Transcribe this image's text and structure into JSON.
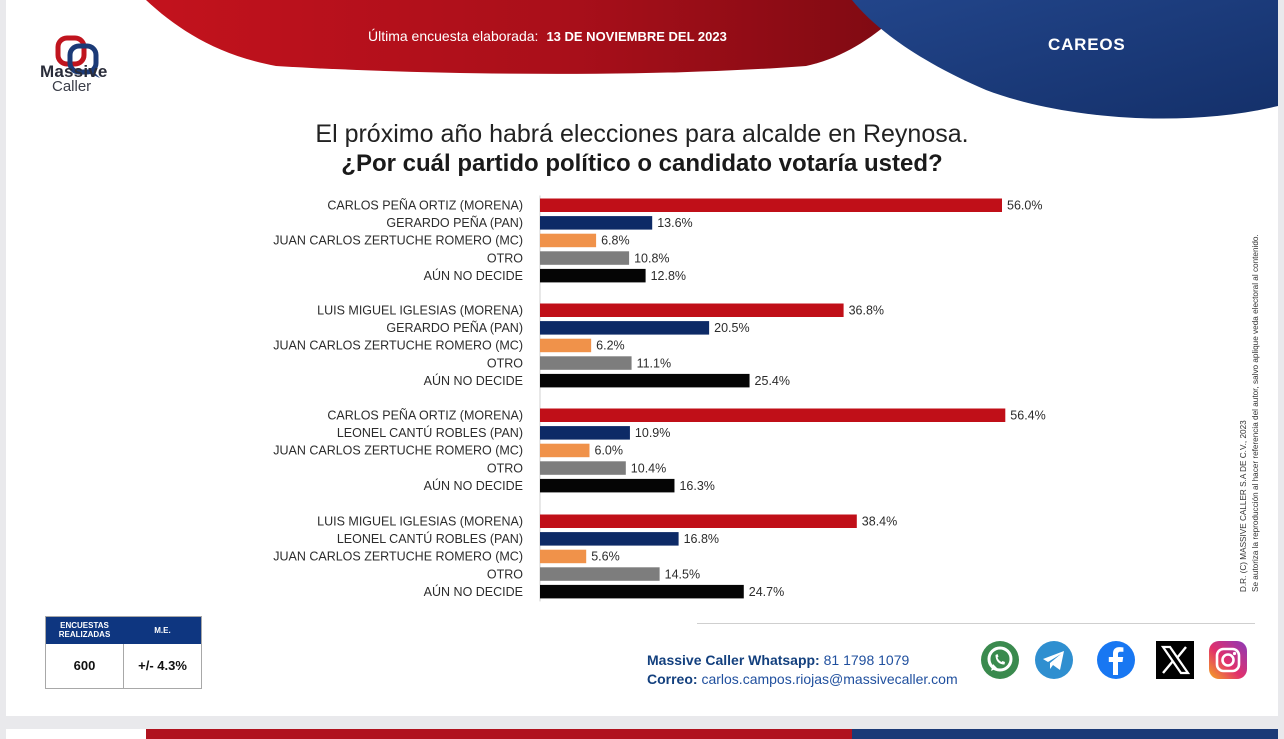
{
  "brand": {
    "name_line1": "Massive",
    "name_line2": "Caller"
  },
  "header": {
    "survey_label": "Última encuesta elaborada:",
    "survey_date": "13 DE NOVIEMBRE  DEL 2023",
    "section": "CAREOS"
  },
  "question": {
    "line1": "El próximo año habrá elecciones para alcalde en Reynosa.",
    "line2": "¿Por cuál partido político o candidato votaría usted?"
  },
  "colors": {
    "morena": "#c00f18",
    "pan": "#0d2a66",
    "mc": "#f0924a",
    "otro": "#7d7d7d",
    "no_decide": "#050505",
    "brand_red": "#b0121e",
    "brand_navy": "#1b3a77"
  },
  "chart_data": {
    "type": "bar",
    "orientation": "horizontal",
    "value_unit": "%",
    "groups": [
      {
        "bars": [
          {
            "label": "CARLOS PEÑA ORTIZ (MORENA)",
            "value": 56.0,
            "display": "56.0%",
            "party": "morena"
          },
          {
            "label": "GERARDO PEÑA (PAN)",
            "value": 13.6,
            "display": "13.6%",
            "party": "pan"
          },
          {
            "label": "JUAN CARLOS ZERTUCHE ROMERO (MC)",
            "value": 6.8,
            "display": "6.8%",
            "party": "mc"
          },
          {
            "label": "OTRO",
            "value": 10.8,
            "display": "10.8%",
            "party": "otro"
          },
          {
            "label": "AÚN NO DECIDE",
            "value": 12.8,
            "display": "12.8%",
            "party": "no_decide"
          }
        ]
      },
      {
        "bars": [
          {
            "label": "LUIS MIGUEL IGLESIAS (MORENA)",
            "value": 36.8,
            "display": "36.8%",
            "party": "morena"
          },
          {
            "label": "GERARDO PEÑA (PAN)",
            "value": 20.5,
            "display": "20.5%",
            "party": "pan"
          },
          {
            "label": "JUAN CARLOS ZERTUCHE ROMERO (MC)",
            "value": 6.2,
            "display": "6.2%",
            "party": "mc"
          },
          {
            "label": "OTRO",
            "value": 11.1,
            "display": "11.1%",
            "party": "otro"
          },
          {
            "label": "AÚN NO DECIDE",
            "value": 25.4,
            "display": "25.4%",
            "party": "no_decide"
          }
        ]
      },
      {
        "bars": [
          {
            "label": "CARLOS PEÑA ORTIZ (MORENA)",
            "value": 56.4,
            "display": "56.4%",
            "party": "morena"
          },
          {
            "label": "LEONEL CANTÚ ROBLES (PAN)",
            "value": 10.9,
            "display": "10.9%",
            "party": "pan"
          },
          {
            "label": "JUAN CARLOS ZERTUCHE ROMERO (MC)",
            "value": 6.0,
            "display": "6.0%",
            "party": "mc"
          },
          {
            "label": "OTRO",
            "value": 10.4,
            "display": "10.4%",
            "party": "otro"
          },
          {
            "label": "AÚN NO DECIDE",
            "value": 16.3,
            "display": "16.3%",
            "party": "no_decide"
          }
        ]
      },
      {
        "bars": [
          {
            "label": "LUIS MIGUEL IGLESIAS (MORENA)",
            "value": 38.4,
            "display": "38.4%",
            "party": "morena"
          },
          {
            "label": "LEONEL CANTÚ ROBLES (PAN)",
            "value": 16.8,
            "display": "16.8%",
            "party": "pan"
          },
          {
            "label": "JUAN CARLOS ZERTUCHE ROMERO (MC)",
            "value": 5.6,
            "display": "5.6%",
            "party": "mc"
          },
          {
            "label": "OTRO",
            "value": 14.5,
            "display": "14.5%",
            "party": "otro"
          },
          {
            "label": "AÚN NO DECIDE",
            "value": 24.7,
            "display": "24.7%",
            "party": "no_decide"
          }
        ]
      }
    ],
    "grid": false,
    "legend": "none"
  },
  "stats": {
    "surveys_header": "ENCUESTAS REALIZADAS",
    "surveys_value": "600",
    "me_header": "M.E.",
    "me_value": "+/- 4.3%"
  },
  "contact": {
    "whatsapp_label": "Massive Caller Whatsapp:",
    "whatsapp_number": "81 1798 1079",
    "email_label": "Correo:",
    "email": "carlos.campos.riojas@massivecaller.com"
  },
  "disclaimer": {
    "line1": "D.R. (C) MASSIVE CALLER S.A DE C.V., 2023",
    "line2": "Se autoriza la reproducción al hacer referencia del autor, salvo aplique veda electoral al contenido."
  },
  "social_icons": [
    "whatsapp-icon",
    "telegram-icon",
    "facebook-icon",
    "x-icon",
    "instagram-icon"
  ]
}
